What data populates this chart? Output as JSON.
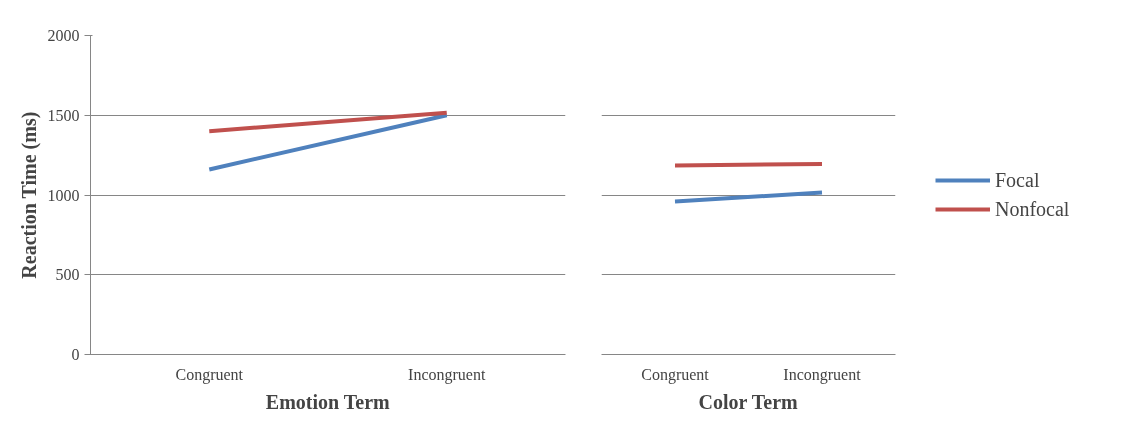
{
  "chart_data": [
    {
      "type": "line",
      "xlabel": "Emotion Term",
      "ylabel": "Reaction Time (ms)",
      "categories": [
        "Congruent",
        "Incongruent"
      ],
      "ylim": [
        0,
        2000
      ],
      "yticks": [
        0,
        500,
        1000,
        1500,
        2000
      ],
      "grid": "y",
      "legend": false,
      "series": [
        {
          "color": "#4f81bd",
          "values": [
            1160,
            1500
          ]
        },
        {
          "color": "#c0504d",
          "values": [
            1400,
            1515
          ]
        }
      ]
    },
    {
      "type": "line",
      "xlabel": "Color Term",
      "categories": [
        "Congruent",
        "Incongruent"
      ],
      "ylim": [
        0,
        2000
      ],
      "yticks": [
        0,
        500,
        1000,
        1500,
        2000
      ],
      "grid": "y",
      "legend": "right",
      "tick_labels": "x",
      "series": [
        {
          "name": "Focal",
          "color": "#4f81bd",
          "values": [
            960,
            1015
          ]
        },
        {
          "name": "Nonfocal",
          "color": "#c0504d",
          "values": [
            1185,
            1195
          ]
        }
      ]
    }
  ]
}
